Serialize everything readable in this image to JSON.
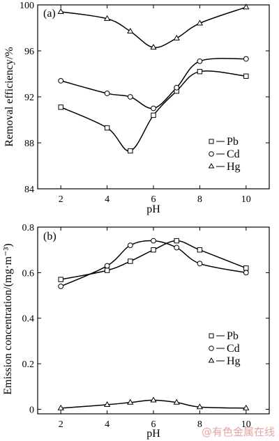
{
  "colors": {
    "ink": "#000000",
    "watermark": "#e2a6a0"
  },
  "chart_data": [
    {
      "type": "line",
      "panel_label": "(a)",
      "xlabel": "pH",
      "ylabel": "Removal efficiency/%",
      "xlim": [
        1,
        11
      ],
      "ylim": [
        84,
        100
      ],
      "xticks": [
        2,
        4,
        6,
        8,
        10
      ],
      "yticks": [
        84,
        88,
        92,
        96,
        100
      ],
      "legend_position": "center-right",
      "series": [
        {
          "name": "Pb",
          "marker": "square",
          "x": [
            2,
            4,
            5,
            6,
            7,
            8,
            10
          ],
          "values": [
            91.1,
            89.3,
            87.3,
            90.4,
            92.5,
            94.2,
            93.8
          ]
        },
        {
          "name": "Cd",
          "marker": "circle",
          "x": [
            2,
            4,
            5,
            6,
            7,
            8,
            10
          ],
          "values": [
            93.4,
            92.3,
            92.0,
            91.0,
            92.8,
            95.1,
            95.3
          ]
        },
        {
          "name": "Hg",
          "marker": "triangle",
          "x": [
            2,
            4,
            5,
            6,
            7,
            8,
            10
          ],
          "values": [
            99.4,
            98.8,
            97.7,
            96.3,
            97.1,
            98.4,
            99.8
          ]
        }
      ]
    },
    {
      "type": "line",
      "panel_label": "(b)",
      "xlabel": "pH",
      "ylabel": "Emission concentration/(mg·m⁻³)",
      "xlim": [
        1,
        11
      ],
      "ylim": [
        -0.02,
        0.8
      ],
      "xticks": [
        2,
        4,
        6,
        8,
        10
      ],
      "yticks": [
        0,
        0.2,
        0.4,
        0.6,
        0.8
      ],
      "ytick_labels": [
        "0",
        "0.2",
        "0.4",
        "0.6",
        "0.8"
      ],
      "legend_position": "lower-right",
      "series": [
        {
          "name": "Pb",
          "marker": "square",
          "x": [
            2,
            4,
            5,
            6,
            7,
            8,
            10
          ],
          "values": [
            0.57,
            0.61,
            0.65,
            0.7,
            0.74,
            0.7,
            0.62
          ]
        },
        {
          "name": "Cd",
          "marker": "circle",
          "x": [
            2,
            4,
            5,
            6,
            7,
            8,
            10
          ],
          "values": [
            0.54,
            0.63,
            0.72,
            0.74,
            0.71,
            0.64,
            0.6
          ]
        },
        {
          "name": "Hg",
          "marker": "triangle",
          "x": [
            2,
            4,
            5,
            6,
            7,
            8,
            10
          ],
          "values": [
            0.005,
            0.02,
            0.03,
            0.04,
            0.03,
            0.01,
            0.005
          ]
        }
      ]
    }
  ],
  "watermark": "@有色金属在线"
}
